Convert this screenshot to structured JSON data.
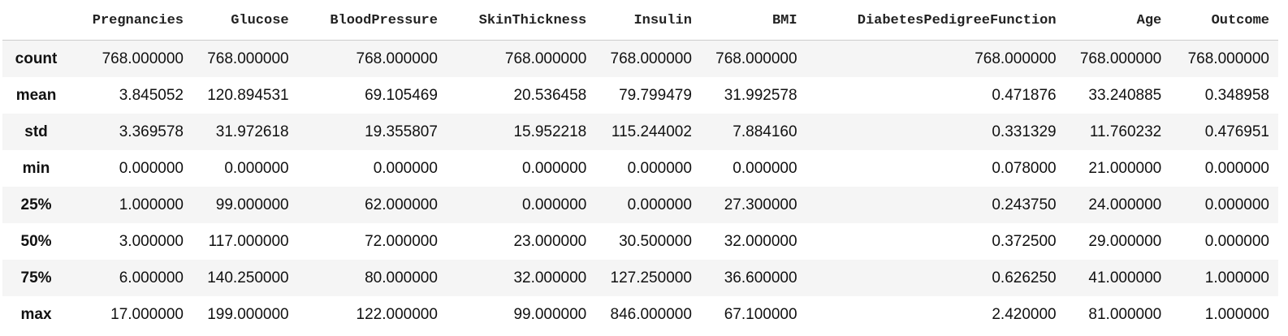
{
  "table": {
    "columns": [
      "Pregnancies",
      "Glucose",
      "BloodPressure",
      "SkinThickness",
      "Insulin",
      "BMI",
      "DiabetesPedigreeFunction",
      "Age",
      "Outcome"
    ],
    "rows": [
      {
        "index": "count",
        "values": [
          "768.000000",
          "768.000000",
          "768.000000",
          "768.000000",
          "768.000000",
          "768.000000",
          "768.000000",
          "768.000000",
          "768.000000"
        ]
      },
      {
        "index": "mean",
        "values": [
          "3.845052",
          "120.894531",
          "69.105469",
          "20.536458",
          "79.799479",
          "31.992578",
          "0.471876",
          "33.240885",
          "0.348958"
        ]
      },
      {
        "index": "std",
        "values": [
          "3.369578",
          "31.972618",
          "19.355807",
          "15.952218",
          "115.244002",
          "7.884160",
          "0.331329",
          "11.760232",
          "0.476951"
        ]
      },
      {
        "index": "min",
        "values": [
          "0.000000",
          "0.000000",
          "0.000000",
          "0.000000",
          "0.000000",
          "0.000000",
          "0.078000",
          "21.000000",
          "0.000000"
        ]
      },
      {
        "index": "25%",
        "values": [
          "1.000000",
          "99.000000",
          "62.000000",
          "0.000000",
          "0.000000",
          "27.300000",
          "0.243750",
          "24.000000",
          "0.000000"
        ]
      },
      {
        "index": "50%",
        "values": [
          "3.000000",
          "117.000000",
          "72.000000",
          "23.000000",
          "30.500000",
          "32.000000",
          "0.372500",
          "29.000000",
          "0.000000"
        ]
      },
      {
        "index": "75%",
        "values": [
          "6.000000",
          "140.250000",
          "80.000000",
          "32.000000",
          "127.250000",
          "36.600000",
          "0.626250",
          "41.000000",
          "1.000000"
        ]
      },
      {
        "index": "max",
        "values": [
          "17.000000",
          "199.000000",
          "122.000000",
          "99.000000",
          "846.000000",
          "67.100000",
          "2.420000",
          "81.000000",
          "1.000000"
        ]
      }
    ]
  }
}
